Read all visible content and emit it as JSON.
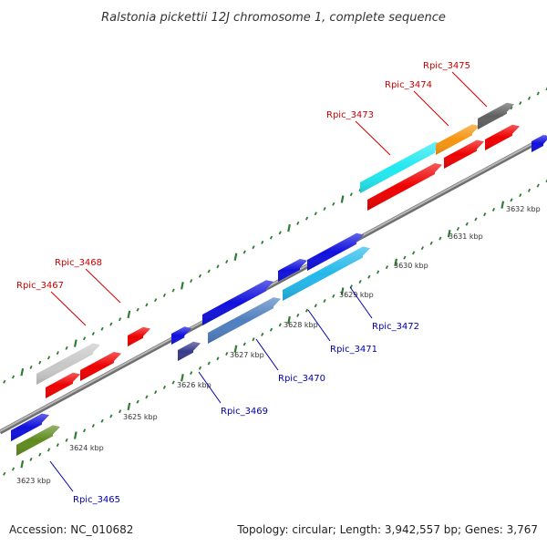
{
  "title": "Ralstonia pickettii 12J chromosome 1, complete sequence",
  "footer": {
    "accession": "Accession: NC_010682",
    "summary": "Topology: circular; Length: 3,942,557 bp; Genes: 3,767"
  },
  "colors": {
    "backbone": "#8c8c8c",
    "tick": "#2e7d32",
    "label_top": "#cc0000",
    "label_bottom": "#0000aa"
  },
  "ticks": [
    {
      "label": "3623 kbp"
    },
    {
      "label": "3624 kbp"
    },
    {
      "label": "3625 kbp"
    },
    {
      "label": "3626 kbp"
    },
    {
      "label": "3627 kbp"
    },
    {
      "label": "3628 kbp"
    },
    {
      "label": "3629 kbp"
    },
    {
      "label": "3630 kbp"
    },
    {
      "label": "3631 kbp"
    },
    {
      "label": "3632 kbp"
    }
  ],
  "gene_labels_top": [
    {
      "text": "Rpic_3467"
    },
    {
      "text": "Rpic_3468"
    },
    {
      "text": "Rpic_3473"
    },
    {
      "text": "Rpic_3474"
    },
    {
      "text": "Rpic_3475"
    }
  ],
  "gene_labels_bottom": [
    {
      "text": "Rpic_3465"
    },
    {
      "text": "Rpic_3469"
    },
    {
      "text": "Rpic_3470"
    },
    {
      "text": "Rpic_3471"
    },
    {
      "text": "Rpic_3472"
    }
  ],
  "feature_colors": {
    "red": "#ee0000",
    "silver": "#c8c8c8",
    "blue": "#1010dd",
    "olive": "#5f8a1e",
    "purple": "#3a3a8c",
    "steel": "#4f7fbf",
    "sky": "#22b8ea",
    "cyan": "#22e8f0",
    "orange": "#f59510",
    "darkgray": "#606060"
  }
}
